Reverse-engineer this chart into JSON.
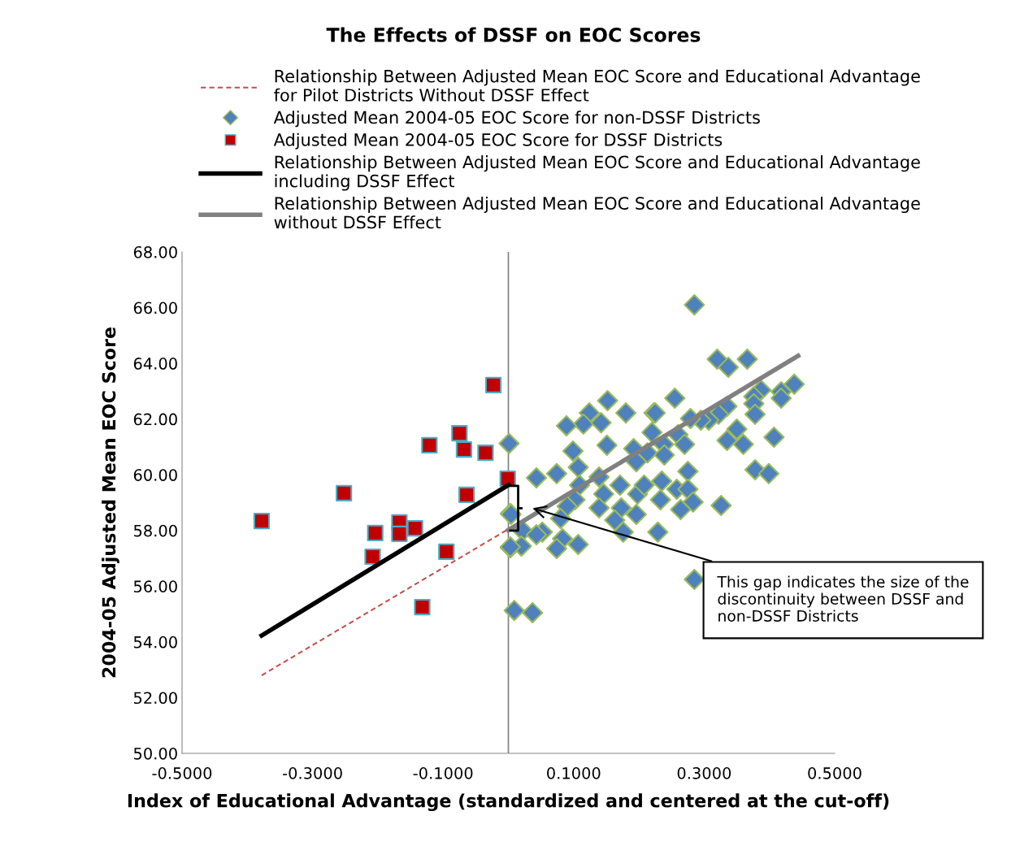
{
  "chart_data": {
    "type": "scatter",
    "title": "The Effects of DSSF on EOC Scores",
    "xlabel": "Index of Educational Advantage (standardized and centered at the cut-off)",
    "ylabel": "2004-05 Adjusted Mean EOC Score",
    "xlim": [
      -0.5,
      0.5
    ],
    "xticks": [
      {
        "value": -0.5,
        "label": "-0.5000"
      },
      {
        "value": -0.3,
        "label": "-0.3000"
      },
      {
        "value": -0.1,
        "label": "-0.1000"
      },
      {
        "value": 0.1,
        "label": "0.1000"
      },
      {
        "value": 0.3,
        "label": "0.3000"
      },
      {
        "value": 0.5,
        "label": "0.5000"
      }
    ],
    "ylim": [
      50,
      68
    ],
    "yticks": [
      {
        "value": 50,
        "label": "50.00"
      },
      {
        "value": 52,
        "label": "52.00"
      },
      {
        "value": 54,
        "label": "54.00"
      },
      {
        "value": 56,
        "label": "56.00"
      },
      {
        "value": 58,
        "label": "58.00"
      },
      {
        "value": 60,
        "label": "60.00"
      },
      {
        "value": 62,
        "label": "62.00"
      },
      {
        "value": 64,
        "label": "64.00"
      },
      {
        "value": 66,
        "label": "66.00"
      },
      {
        "value": 68,
        "label": "68.00"
      }
    ],
    "grid": false,
    "legend": "top",
    "ref_lines": [
      {
        "axis": "x",
        "value": 0,
        "color": "#808080"
      }
    ],
    "annotations": [
      {
        "text": "This gap indicates the size of the discontinuity between DSSF and non-DSSF Districts",
        "x": 0.037,
        "y": 58.8
      }
    ],
    "series": [
      {
        "name": "Relationship Between Adjusted Mean EOC Score and Educational Advantage for Pilot Districts Without DSSF Effect",
        "type": "line",
        "color": "#c0504d",
        "line_style": "dashed",
        "marker": "none",
        "x": [
          -0.378,
          0.0
        ],
        "values": [
          52.8,
          58.05
        ]
      },
      {
        "name": "Adjusted Mean 2004-05 EOC Score for non-DSSF Districts",
        "color": "#4f81bd",
        "marker": "diamond",
        "x": [
          0.001,
          0.003,
          0.003,
          0.009,
          0.037,
          0.152,
          0.18,
          0.124,
          0.115,
          0.142,
          0.089,
          0.223,
          0.151,
          0.099,
          0.107,
          0.043,
          0.074,
          0.139,
          0.109,
          0.192,
          0.196,
          0.213,
          0.22,
          0.146,
          0.171,
          0.198,
          0.208,
          0.173,
          0.139,
          0.102,
          0.09,
          0.08,
          0.196,
          0.163,
          0.176,
          0.004,
          0.022,
          0.052,
          0.043,
          0.02,
          0.003,
          0.083,
          0.074,
          0.107,
          0.229,
          0.285,
          0.32,
          0.337,
          0.366,
          0.438,
          0.387,
          0.418,
          0.376,
          0.376,
          0.418,
          0.255,
          0.225,
          0.335,
          0.322,
          0.307,
          0.295,
          0.279,
          0.378,
          0.26,
          0.27,
          0.238,
          0.239,
          0.35,
          0.335,
          0.36,
          0.407,
          0.275,
          0.378,
          0.399,
          0.235,
          0.258,
          0.275,
          0.233,
          0.283,
          0.264,
          0.326,
          0.285
        ],
        "values": [
          61.12,
          58.61,
          57.38,
          55.13,
          55.05,
          62.66,
          62.22,
          62.22,
          61.82,
          61.87,
          61.76,
          62.22,
          61.06,
          60.85,
          60.27,
          59.89,
          60.04,
          59.92,
          59.63,
          60.94,
          60.47,
          60.79,
          61.52,
          59.31,
          59.63,
          59.31,
          59.63,
          58.81,
          58.81,
          59.1,
          58.87,
          58.43,
          58.58,
          58.37,
          57.94,
          58.58,
          57.99,
          57.94,
          57.85,
          57.44,
          57.41,
          57.7,
          57.35,
          57.5,
          57.94,
          66.1,
          64.15,
          63.86,
          64.15,
          63.25,
          63.04,
          62.98,
          62.81,
          62.55,
          62.75,
          62.75,
          62.22,
          62.46,
          62.17,
          61.96,
          61.96,
          62.02,
          62.17,
          61.44,
          61.09,
          61.09,
          60.71,
          61.64,
          61.23,
          61.09,
          61.35,
          60.12,
          60.18,
          60.04,
          59.77,
          59.48,
          59.48,
          59.1,
          59.02,
          58.75,
          58.9,
          56.24
        ]
      },
      {
        "name": "Adjusted Mean 2004-05 EOC Score for DSSF Districts",
        "color": "#c00000",
        "marker": "square",
        "x": [
          -0.378,
          -0.252,
          -0.208,
          -0.204,
          -0.167,
          -0.167,
          -0.143,
          -0.132,
          -0.121,
          -0.095,
          -0.075,
          -0.068,
          -0.064,
          -0.035,
          -0.023,
          -0.001
        ],
        "values": [
          58.34,
          59.34,
          57.06,
          57.91,
          58.29,
          57.88,
          58.08,
          55.25,
          61.06,
          57.24,
          61.49,
          60.91,
          59.28,
          60.79,
          63.22,
          59.86
        ]
      },
      {
        "name": "Relationship Between Adjusted Mean EOC Score and Educational Advantage including DSSF Effect",
        "type": "line",
        "color": "#000000",
        "line_style": "solid",
        "marker": "none",
        "x": [
          -0.378,
          0.0
        ],
        "values": [
          54.23,
          59.63
        ]
      },
      {
        "name": "Relationship Between Adjusted Mean EOC Score and Educational Advantage without DSSF Effect",
        "type": "line",
        "color": "#808080",
        "line_style": "solid",
        "marker": "none",
        "x": [
          0.0,
          0.444
        ],
        "values": [
          58.02,
          64.27
        ]
      }
    ]
  }
}
